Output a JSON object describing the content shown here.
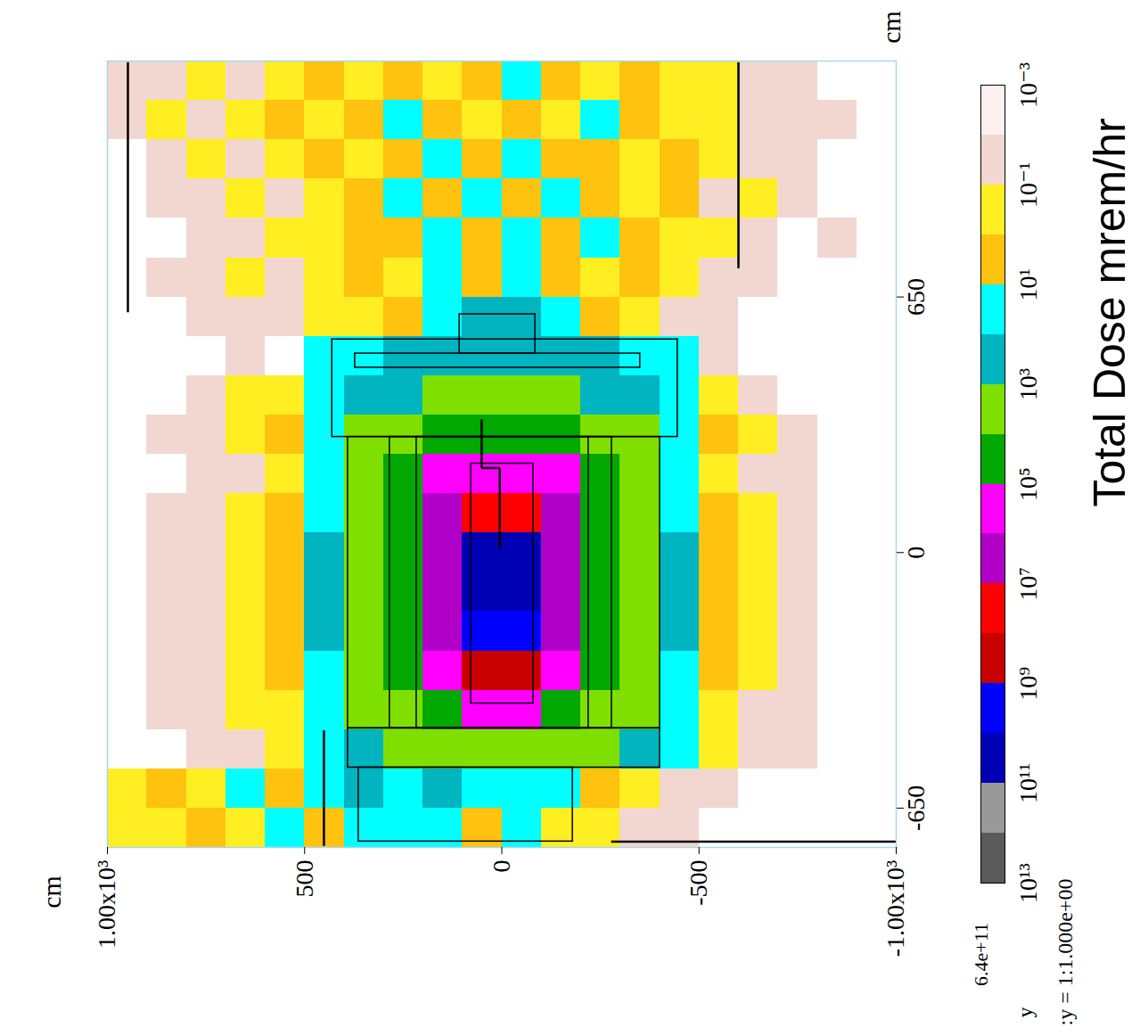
{
  "chart_data": {
    "type": "heatmap",
    "xlabel": "cm",
    "ylabel": "cm",
    "xlim": [
      1000,
      -1000
    ],
    "xticks": [
      {
        "value": 1000,
        "label": "1.00x10³"
      },
      500,
      0,
      -500,
      {
        "value": -1000,
        "label": "-1.00x10³"
      }
    ],
    "ylim": [
      -750,
      1250
    ],
    "yticks": [
      -650,
      0,
      650
    ],
    "cells": {
      "x_edges": [
        1000,
        900,
        800,
        700,
        600,
        500,
        400,
        300,
        200,
        100,
        0,
        -100,
        -200,
        -300,
        -400,
        -500,
        -600,
        -700,
        -800,
        -900,
        -1000
      ],
      "y_edges": [
        1250,
        1150,
        1050,
        950,
        850,
        750,
        650,
        550,
        450,
        350,
        250,
        150,
        50,
        -50,
        -150,
        -250,
        -350,
        -450,
        -550,
        -650,
        -750
      ],
      "values": [
        [
          0.03,
          0.03,
          0.3,
          0.03,
          0.3,
          3,
          0.3,
          3,
          0.3,
          3,
          30,
          3,
          0.3,
          3,
          0.3,
          0.3,
          0.03,
          0.03,
          null,
          null
        ],
        [
          0.03,
          0.3,
          0.03,
          0.3,
          3,
          0.3,
          3,
          30,
          3,
          0.3,
          3,
          0.3,
          30,
          3,
          0.3,
          0.3,
          0.03,
          0.03,
          0.03,
          null
        ],
        [
          null,
          0.03,
          0.3,
          0.03,
          0.3,
          3,
          0.3,
          3,
          30,
          3,
          30,
          3,
          3,
          0.3,
          3,
          0.3,
          0.03,
          0.03,
          null,
          null
        ],
        [
          null,
          0.03,
          0.03,
          0.3,
          0.03,
          0.3,
          3,
          30,
          3,
          30,
          3,
          30,
          3,
          0.3,
          3,
          0.03,
          0.3,
          0.03,
          null,
          null
        ],
        [
          null,
          null,
          0.03,
          0.03,
          0.3,
          0.3,
          3,
          3,
          30,
          3,
          30,
          3,
          30,
          3,
          0.3,
          0.3,
          0.03,
          null,
          0.03,
          null
        ],
        [
          null,
          0.03,
          0.03,
          0.3,
          0.03,
          0.3,
          3,
          0.3,
          30,
          3,
          30,
          3,
          0.3,
          3,
          0.3,
          0.03,
          0.03,
          null,
          null,
          null
        ],
        [
          null,
          null,
          0.03,
          0.03,
          0.03,
          0.3,
          0.3,
          3,
          30,
          300,
          300,
          30,
          3,
          0.3,
          0.03,
          0.03,
          null,
          null,
          null,
          null
        ],
        [
          null,
          null,
          null,
          0.03,
          null,
          30,
          30,
          300,
          300,
          300,
          300,
          300,
          300,
          30,
          30,
          0.03,
          null,
          null,
          null,
          null
        ],
        [
          null,
          null,
          0.03,
          0.3,
          0.3,
          30,
          300,
          300,
          3000.0,
          3000.0,
          3000.0,
          3000.0,
          300,
          300,
          30,
          0.3,
          0.03,
          null,
          null,
          null
        ],
        [
          null,
          0.03,
          0.03,
          0.3,
          3,
          30,
          3000.0,
          3000.0,
          30000.0,
          30000.0,
          30000.0,
          30000.0,
          3000.0,
          3000.0,
          30,
          3,
          0.3,
          0.03,
          null,
          null
        ],
        [
          null,
          null,
          0.03,
          0.03,
          0.3,
          30,
          3000.0,
          30000.0,
          300000.0,
          300000.0,
          300000.0,
          300000.0,
          30000.0,
          3000.0,
          30,
          0.3,
          0.03,
          0.03,
          null,
          null
        ],
        [
          null,
          0.03,
          0.03,
          0.3,
          3,
          30,
          3000.0,
          30000.0,
          3000000.0,
          30000000.0,
          30000000.0,
          3000000.0,
          30000.0,
          3000.0,
          30,
          3,
          0.3,
          0.03,
          null,
          null
        ],
        [
          null,
          0.03,
          0.03,
          0.3,
          3,
          300,
          3000.0,
          30000.0,
          3000000.0,
          30000000000.0,
          30000000000.0,
          3000000.0,
          30000.0,
          3000.0,
          300,
          3,
          0.3,
          0.03,
          null,
          null
        ],
        [
          null,
          0.03,
          0.03,
          0.3,
          3,
          300,
          3000.0,
          30000.0,
          3000000.0,
          30000000000.0,
          30000000000.0,
          3000000.0,
          30000.0,
          3000.0,
          300,
          3,
          0.3,
          0.03,
          null,
          null
        ],
        [
          null,
          0.03,
          0.03,
          0.3,
          3,
          300,
          3000.0,
          30000.0,
          3000000.0,
          3000000000.0,
          3000000000.0,
          3000000.0,
          30000.0,
          3000.0,
          300,
          3,
          0.3,
          0.03,
          null,
          null
        ],
        [
          null,
          0.03,
          0.03,
          0.3,
          3,
          30,
          3000.0,
          30000.0,
          300000.0,
          300000000.0,
          300000000.0,
          300000.0,
          30000.0,
          3000.0,
          30,
          3,
          0.3,
          0.03,
          null,
          null
        ],
        [
          null,
          0.03,
          0.03,
          0.3,
          0.3,
          30,
          3000.0,
          3000.0,
          30000.0,
          300000.0,
          300000.0,
          30000.0,
          3000.0,
          3000.0,
          30,
          0.3,
          0.03,
          0.03,
          null,
          null
        ],
        [
          null,
          null,
          0.03,
          0.03,
          0.3,
          30,
          300,
          3000.0,
          3000.0,
          3000.0,
          3000.0,
          3000.0,
          3000.0,
          300,
          30,
          0.3,
          0.03,
          0.03,
          null,
          null
        ],
        [
          0.3,
          3,
          0.3,
          30,
          3,
          30,
          300,
          30,
          300,
          30,
          30,
          30,
          3,
          0.3,
          0.03,
          0.03,
          null,
          null,
          null,
          null
        ],
        [
          0.3,
          0.3,
          3,
          0.3,
          30,
          3,
          30,
          30,
          30,
          3,
          30,
          0.3,
          0.3,
          0.03,
          0.03,
          null,
          null,
          null,
          null,
          null
        ]
      ]
    },
    "geometry": {
      "rects": [
        [
          390,
          -401,
          294,
          -447
        ],
        [
          284,
          -279,
          294,
          -447
        ],
        [
          216,
          -220,
          294,
          -447
        ],
        [
          78,
          -80,
          226,
          -384
        ],
        [
          390,
          -401,
          -447,
          -547
        ],
        [
          363,
          -180,
          -547,
          -735
        ],
        [
          430,
          -446,
          542,
          294
        ],
        [
          372,
          -351,
          506,
          470
        ],
        [
          107,
          -85,
          606,
          506
        ]
      ],
      "lines": [
        [
          948,
          1247,
          948,
          611
        ],
        [
          -600,
          1247,
          -600,
          723
        ],
        [
          -277,
          -735,
          -1000,
          -735
        ],
        [
          451,
          -452,
          451,
          -746
        ],
        [
          51,
          339,
          51,
          215
        ],
        [
          51,
          215,
          5,
          215
        ],
        [
          5,
          215,
          5,
          11
        ]
      ]
    },
    "colorbar": {
      "label": "Total Dose mrem/hr",
      "lim": [
        0.001,
        10000000000000.0
      ],
      "bounds": [
        0.001,
        0.01,
        0.1,
        1,
        10,
        100,
        1000,
        10000,
        100000,
        1000000,
        10000000.0,
        100000000.0,
        1000000000.0,
        10000000000.0,
        100000000000.0,
        1000000000000.0,
        10000000000000.0
      ],
      "colors": [
        "#fbf1ee",
        "#f2d7d0",
        "#ffee22",
        "#ffc20e",
        "#00ffff",
        "#00b4c0",
        "#7fe000",
        "#00a800",
        "#ff00ff",
        "#b000c8",
        "#ff0000",
        "#c80000",
        "#0000ff",
        "#0000b4",
        "#999999",
        "#5a5a5a"
      ],
      "ticks": [
        {
          "value": 0.001,
          "label": "10⁻³"
        },
        {
          "value": 0.1,
          "label": "10⁻¹"
        },
        {
          "value": 10,
          "label": "10¹"
        },
        {
          "value": 1000,
          "label": "10³"
        },
        {
          "value": 100000,
          "label": "10⁵"
        },
        {
          "value": 10000000.0,
          "label": "10⁷"
        },
        {
          "value": 1000000000.0,
          "label": "10⁹"
        },
        {
          "value": 100000000000.0,
          "label": "10¹¹"
        },
        {
          "value": 10000000000000.0,
          "label": "10¹³"
        }
      ],
      "max": {
        "value": 640000000000.0,
        "label": "6.4e+11"
      }
    },
    "annotations": [
      "y",
      ":y = 1:1.000e+00"
    ]
  }
}
